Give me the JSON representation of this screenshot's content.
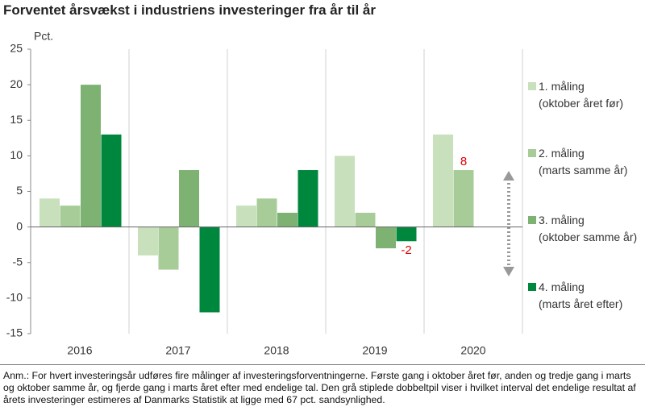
{
  "chart_data": {
    "type": "bar",
    "title": "Forventet årsvækst i industriens investeringer fra år til år",
    "y_label": "Pct.",
    "categories": [
      "2016",
      "2017",
      "2018",
      "2019",
      "2020"
    ],
    "series": [
      {
        "name": "1. måling\n(oktober året før)",
        "color": "#c8e0bc",
        "values": [
          4,
          -4,
          3,
          10,
          13
        ]
      },
      {
        "name": "2. måling\n(marts samme år)",
        "color": "#a8cc98",
        "values": [
          3,
          -6,
          4,
          2,
          8
        ],
        "value_labels": [
          null,
          null,
          null,
          null,
          "8"
        ]
      },
      {
        "name": "3. måling\n(oktober samme år)",
        "color": "#7db273",
        "values": [
          20,
          8,
          2,
          -3,
          null
        ]
      },
      {
        "name": "4. måling\n(marts året efter)",
        "color": "#00873e",
        "values": [
          13,
          -12,
          8,
          -2,
          null
        ],
        "value_labels": [
          null,
          null,
          null,
          "-2",
          null
        ]
      }
    ],
    "ylim": [
      -15,
      25
    ],
    "yticks": [
      -15,
      -10,
      -5,
      0,
      5,
      10,
      15,
      20,
      25
    ],
    "note": "Anm.: For hvert investeringsår udføres fire målinger af investeringsforventningerne. Første gang i oktober året før, anden og tredje gang i marts og oktober samme år, og fjerde gang i marts året efter med endelige tal. Den grå stiplede dobbeltpil viser i hvilket interval det endelige resultat af årets investeringer estimeres af Danmarks Statistik at ligge med 67 pct. sandsynlighed."
  }
}
